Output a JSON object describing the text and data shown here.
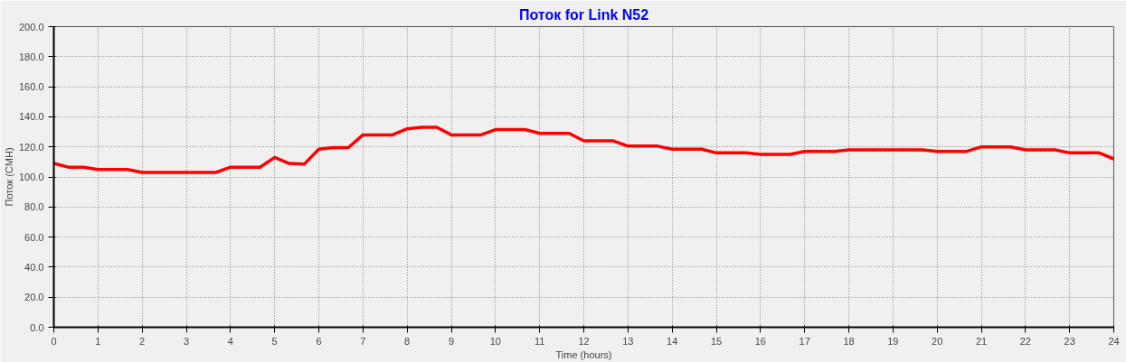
{
  "chart_data": {
    "type": "line",
    "title": "Поток for Link N52",
    "xlabel": "Time (hours)",
    "ylabel": "Поток (CMH)",
    "x": [
      0,
      0.33,
      0.67,
      1,
      1.33,
      1.67,
      2,
      2.33,
      2.67,
      3,
      3.33,
      3.67,
      4,
      4.33,
      4.67,
      5,
      5.33,
      5.67,
      6,
      6.33,
      6.67,
      7,
      7.33,
      7.67,
      8,
      8.33,
      8.67,
      9,
      9.33,
      9.67,
      10,
      10.33,
      10.67,
      11,
      11.33,
      11.67,
      12,
      12.33,
      12.67,
      13,
      13.33,
      13.67,
      14,
      14.33,
      14.67,
      15,
      15.33,
      15.67,
      16,
      16.33,
      16.67,
      17,
      17.33,
      17.67,
      18,
      18.33,
      18.67,
      19,
      19.33,
      19.67,
      20,
      20.33,
      20.67,
      21,
      21.33,
      21.67,
      22,
      22.33,
      22.67,
      23,
      23.33,
      23.67,
      24
    ],
    "series": [
      {
        "color": "#ff0000",
        "values": [
          109,
          106.5,
          106.5,
          105,
          105,
          105,
          103,
          103,
          103,
          103,
          103,
          103,
          106.5,
          106.5,
          106.5,
          113,
          109,
          108.5,
          118.5,
          119.5,
          119.5,
          128,
          128,
          128,
          132,
          133,
          133,
          128,
          128,
          128,
          131.5,
          131.5,
          131.5,
          129,
          129,
          129,
          124,
          124,
          124,
          120.5,
          120.5,
          120.5,
          118.5,
          118.5,
          118.5,
          116,
          116,
          116,
          115,
          115,
          115,
          117,
          117,
          117,
          118,
          118,
          118,
          118,
          118,
          118,
          117,
          117,
          117,
          120,
          120,
          120,
          118,
          118,
          118,
          116,
          116,
          116,
          112
        ]
      }
    ],
    "xlim": [
      0,
      24
    ],
    "xticks": [
      0,
      1,
      2,
      3,
      4,
      5,
      6,
      7,
      8,
      9,
      10,
      11,
      12,
      13,
      14,
      15,
      16,
      17,
      18,
      19,
      20,
      21,
      22,
      23,
      24
    ],
    "ylim": [
      0,
      200
    ],
    "yticks": [
      {
        "value": 0,
        "label": "0.0"
      },
      {
        "value": 20,
        "label": "20.0"
      },
      {
        "value": 40,
        "label": "40.0"
      },
      {
        "value": 60,
        "label": "60.0"
      },
      {
        "value": 80,
        "label": "80.0"
      },
      {
        "value": 100,
        "label": "100.0"
      },
      {
        "value": 120,
        "label": "120.0"
      },
      {
        "value": 140,
        "label": "140.0"
      },
      {
        "value": 160,
        "label": "160.0"
      },
      {
        "value": 180,
        "label": "180.0"
      },
      {
        "value": 200,
        "label": "200.0"
      }
    ],
    "grid": true,
    "line_style": "solid",
    "marker": "none"
  }
}
